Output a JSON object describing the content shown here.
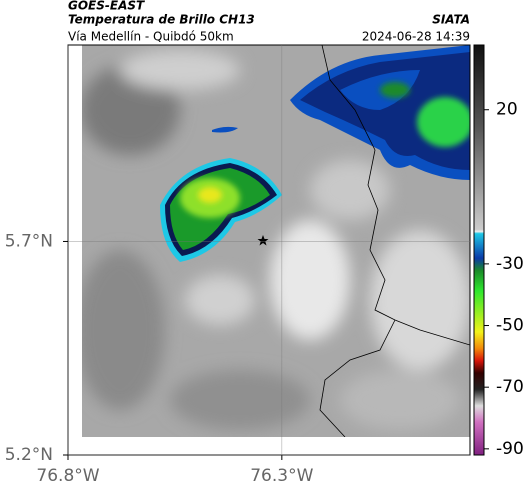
{
  "header": {
    "title": "GOES-EAST",
    "subtitle": "Temperatura de Brillo CH13",
    "caption": "Vía Medellín - Quibdó 50km",
    "source": "SIATA",
    "timestamp": "2024-06-28 14:39"
  },
  "map": {
    "xlim": [
      -76.8,
      -75.86
    ],
    "ylim": [
      5.2,
      6.16
    ],
    "xticks": [
      {
        "value": -76.8,
        "label": "76.8°W"
      },
      {
        "value": -76.3,
        "label": "76.3°W"
      }
    ],
    "yticks": [
      {
        "value": 5.2,
        "label": "5.2°N"
      },
      {
        "value": 5.7,
        "label": "5.7°N"
      }
    ],
    "grid": true
  },
  "colorbar": {
    "lim": [
      -92,
      41
    ],
    "ticks": [
      20,
      -30,
      -50,
      -70,
      -90
    ]
  }
}
